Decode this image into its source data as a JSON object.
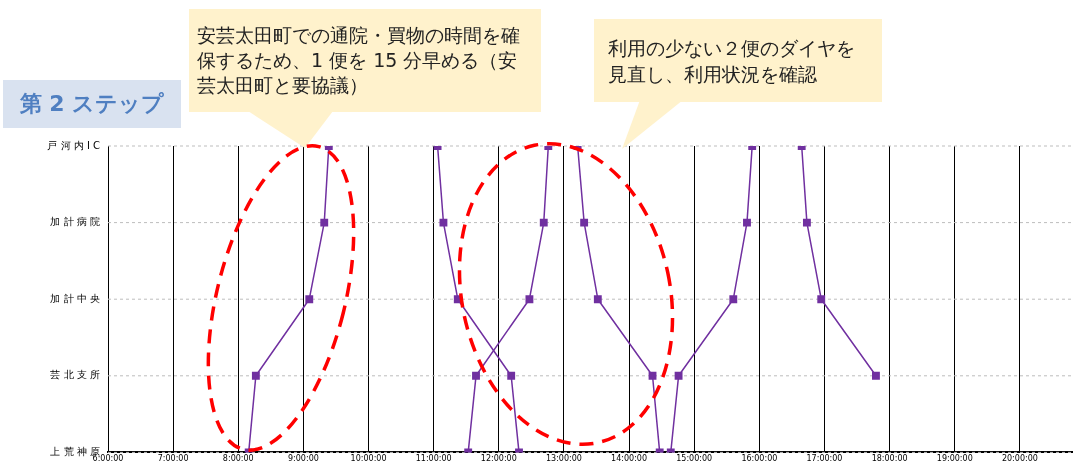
{
  "chart_data": {
    "type": "line",
    "title": "第 2 ステップ",
    "orientation": "horizontal",
    "annotations": [
      "安芸太田町での通院・買物の時間を確保するため、1 便を 15 分早める（安芸太田町と要協議）",
      "利用の少ない２便のダイヤを見直し、利用状況を確認"
    ],
    "categories": [
      "戸 河 内 I C",
      "加 計 病 院",
      "加 計 中 央",
      "芸 北 支 所",
      "上 荒 神 原"
    ],
    "series": [
      {
        "color": "#7030a0",
        "values": [
          9.39,
          9.32,
          9.09,
          8.27,
          8.16
        ]
      },
      {
        "color": "#7030a0",
        "values": [
          11.06,
          11.15,
          11.37,
          12.19,
          12.31
        ]
      },
      {
        "color": "#7030a0",
        "values": [
          12.76,
          12.69,
          12.47,
          11.65,
          11.53
        ]
      },
      {
        "color": "#7030a0",
        "values": [
          13.21,
          13.31,
          13.52,
          14.36,
          14.47
        ]
      },
      {
        "color": "#7030a0",
        "values": [
          15.89,
          15.81,
          15.6,
          14.76,
          14.64
        ]
      },
      {
        "color": "#7030a0",
        "values": [
          16.65,
          16.73,
          16.95,
          17.79,
          null
        ]
      }
    ],
    "xlim": [
      6,
      20.8
    ],
    "xticks": [
      {
        "value": 6,
        "label": "6:00:00"
      },
      {
        "value": 7,
        "label": "7:00:00"
      },
      {
        "value": 8,
        "label": "8:00:00"
      },
      {
        "value": 9,
        "label": "9:00:00"
      },
      {
        "value": 10,
        "label": "10:00:00"
      },
      {
        "value": 11,
        "label": "11:00:00"
      },
      {
        "value": 12,
        "label": "12:00:00"
      },
      {
        "value": 13,
        "label": "13:00:00"
      },
      {
        "value": 14,
        "label": "14:00:00"
      },
      {
        "value": 15,
        "label": "15:00:00"
      },
      {
        "value": 16,
        "label": "16:00:00"
      },
      {
        "value": 17,
        "label": "17:00:00"
      },
      {
        "value": 18,
        "label": "18:00:00"
      },
      {
        "value": 19,
        "label": "19:00:00"
      },
      {
        "value": 20,
        "label": "20:00:00"
      }
    ],
    "grid": true,
    "legend": false,
    "marker": "square",
    "line_style": "solid"
  }
}
